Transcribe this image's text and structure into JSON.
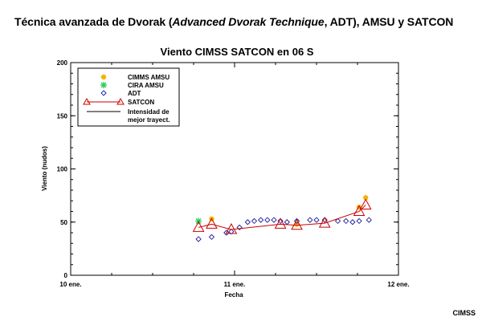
{
  "header": {
    "title_prefix": "Técnica avanzada de Dvorak  (",
    "title_italic": "Advanced Dvorak Technique",
    "title_suffix": ", ADT), AMSU y SATCON"
  },
  "credit": "CIMSS",
  "colors": {
    "amsu": "#f5b400",
    "cira": "#22cc55",
    "adt": "#1a1aa0",
    "satcon": "#cc0000",
    "best_track": "#000000"
  },
  "chart_data": {
    "type": "scatter",
    "title": "Viento CIMSS SATCON en 06 S",
    "xlabel": "Fecha",
    "ylabel": "Viento (nudos)",
    "xlim": [
      0,
      2
    ],
    "ylim": [
      0,
      200
    ],
    "x_ticks": [
      {
        "value": 0,
        "label": "10 ene."
      },
      {
        "value": 1,
        "label": "11 ene."
      },
      {
        "value": 2,
        "label": "12 ene."
      }
    ],
    "y_ticks": [
      {
        "value": 0,
        "label": "0"
      },
      {
        "value": 50,
        "label": "50"
      },
      {
        "value": 100,
        "label": "100"
      },
      {
        "value": 150,
        "label": "150"
      },
      {
        "value": 200,
        "label": "200"
      }
    ],
    "grid": false,
    "legend_position": "top-left",
    "series": [
      {
        "name": "CIMMS AMSU",
        "marker": "dot",
        "color_key": "amsu",
        "points": [
          {
            "x": 0.86,
            "y": 53
          },
          {
            "x": 1.38,
            "y": 48
          },
          {
            "x": 1.76,
            "y": 64
          },
          {
            "x": 1.8,
            "y": 73
          }
        ]
      },
      {
        "name": "CIRA AMSU",
        "marker": "asterisk",
        "color_key": "cira",
        "points": [
          {
            "x": 0.78,
            "y": 51
          }
        ]
      },
      {
        "name": "ADT",
        "marker": "diamond",
        "color_key": "adt",
        "points": [
          {
            "x": 0.78,
            "y": 34
          },
          {
            "x": 0.86,
            "y": 36
          },
          {
            "x": 0.95,
            "y": 40
          },
          {
            "x": 0.98,
            "y": 41
          },
          {
            "x": 1.03,
            "y": 45
          },
          {
            "x": 1.08,
            "y": 50
          },
          {
            "x": 1.12,
            "y": 51
          },
          {
            "x": 1.16,
            "y": 52
          },
          {
            "x": 1.2,
            "y": 52
          },
          {
            "x": 1.24,
            "y": 52
          },
          {
            "x": 1.28,
            "y": 51
          },
          {
            "x": 1.32,
            "y": 50
          },
          {
            "x": 1.38,
            "y": 51
          },
          {
            "x": 1.46,
            "y": 52
          },
          {
            "x": 1.5,
            "y": 52
          },
          {
            "x": 1.55,
            "y": 52
          },
          {
            "x": 1.63,
            "y": 51
          },
          {
            "x": 1.68,
            "y": 51
          },
          {
            "x": 1.72,
            "y": 50
          },
          {
            "x": 1.76,
            "y": 51
          },
          {
            "x": 1.82,
            "y": 52
          }
        ]
      },
      {
        "name": "SATCON",
        "marker": "triangle-line",
        "color_key": "satcon",
        "points": [
          {
            "x": 0.78,
            "y": 45
          },
          {
            "x": 0.86,
            "y": 48
          },
          {
            "x": 0.98,
            "y": 43
          },
          {
            "x": 1.28,
            "y": 48
          },
          {
            "x": 1.38,
            "y": 47
          },
          {
            "x": 1.55,
            "y": 49
          },
          {
            "x": 1.76,
            "y": 60
          },
          {
            "x": 1.8,
            "y": 66
          }
        ]
      },
      {
        "name": "Intensidad de mejor trayect.",
        "marker": "line",
        "color_key": "best_track",
        "points": []
      }
    ]
  }
}
